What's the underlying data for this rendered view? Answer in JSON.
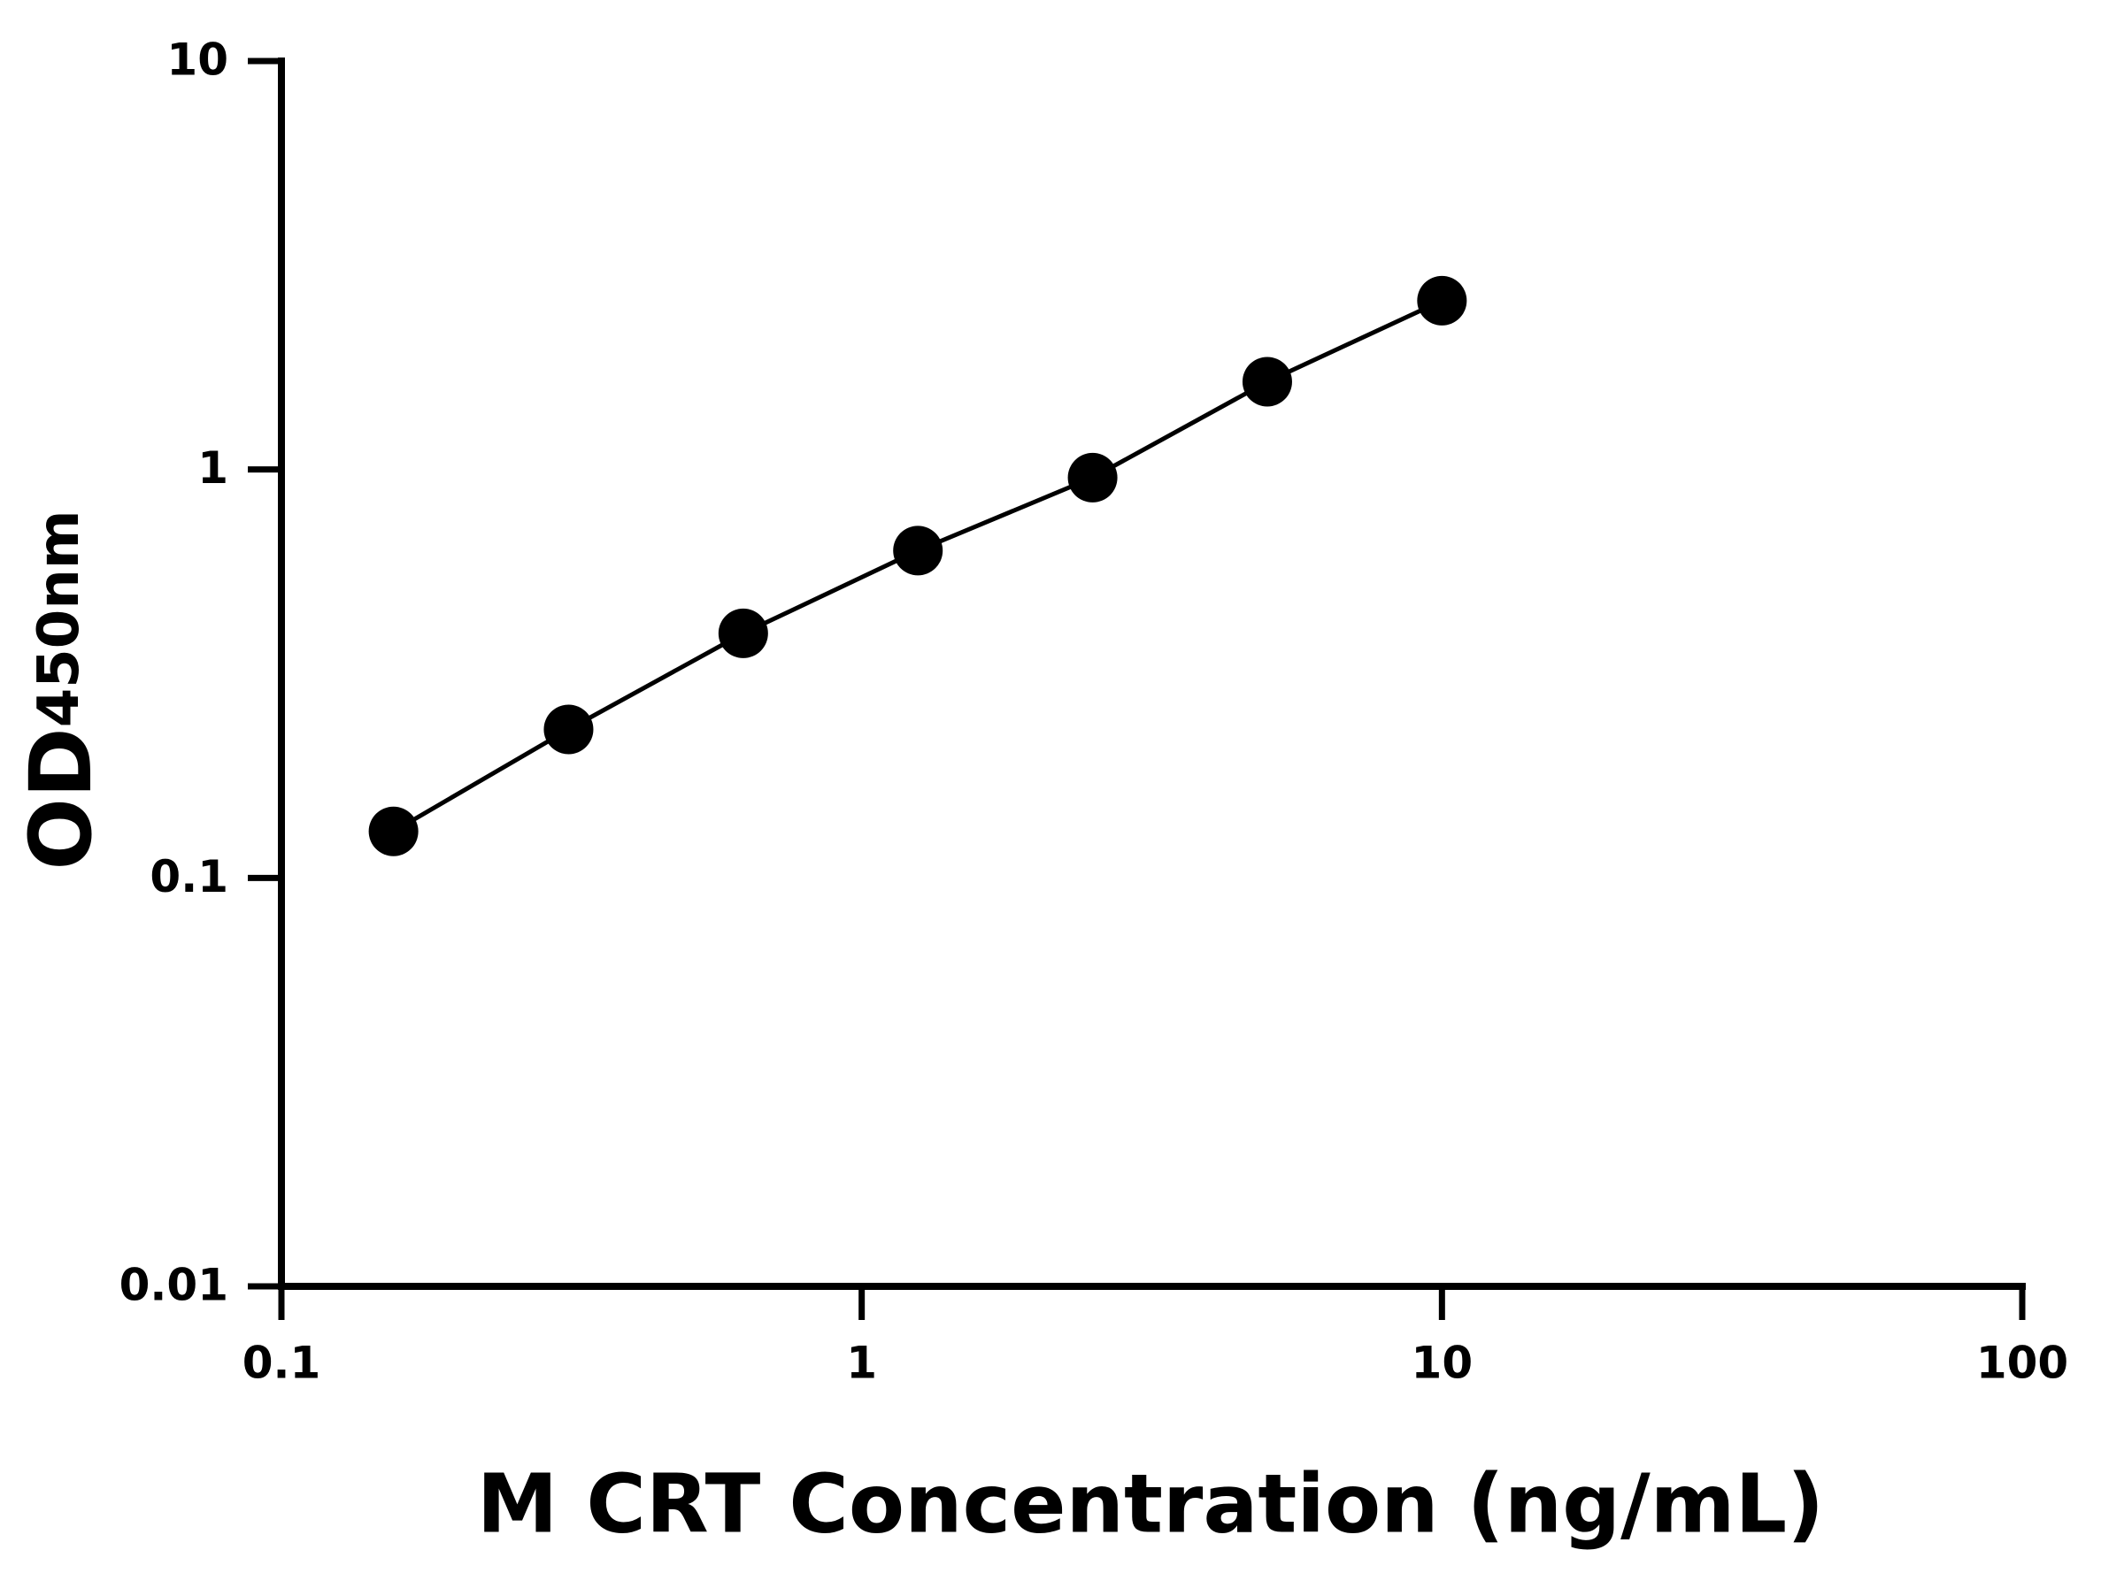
{
  "chart_data": {
    "type": "line",
    "x_label": "M CRT Concentration (ng/mL)",
    "y_label": "OD",
    "y_label_subscript": "450nm",
    "x_log": true,
    "y_log": true,
    "x": [
      0.156,
      0.3125,
      0.625,
      1.25,
      2.5,
      5,
      10
    ],
    "series": [
      {
        "color": "#000000",
        "values": [
          0.13,
          0.231,
          0.397,
          0.633,
          0.955,
          1.64,
          2.59
        ]
      }
    ],
    "xlim": [
      0.1,
      100
    ],
    "ylim": [
      0.01,
      10
    ],
    "xticks": [
      0.1,
      1,
      10,
      100
    ],
    "yticks": [
      0.01,
      0.1,
      1,
      10
    ]
  }
}
